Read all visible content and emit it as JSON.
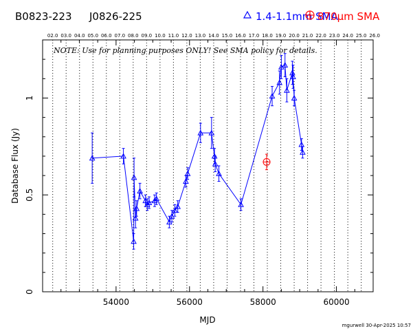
{
  "header": {
    "source_name": "B0823-223",
    "alt_name": "J0826-225",
    "legend_blue": "1.4-1.1mm SMA",
    "legend_red": "870μm SMA"
  },
  "note": "NOTE: Use for planning purposes ONLY! See SMA policy for details.",
  "stamp": "mgurwell 30-Apr-2025 10:57",
  "colors": {
    "blue": "#0000ff",
    "red": "#ff0000",
    "axis": "#000000"
  },
  "chart_data": {
    "type": "scatter",
    "xlabel": "MJD",
    "ylabel": "Database Flux (Jy)",
    "xlim": [
      52000,
      61000
    ],
    "ylim": [
      0,
      1.3
    ],
    "x_ticks": [
      54000,
      56000,
      58000,
      60000
    ],
    "x_tick_labels": [
      "54000",
      "56000",
      "58000",
      "60000"
    ],
    "y_ticks": [
      0,
      0.5,
      1
    ],
    "y_tick_labels": [
      "0",
      "0.5",
      "1"
    ],
    "top_axis_labels": [
      "02.0",
      "03.0",
      "04.0",
      "05.0",
      "06.0",
      "07.0",
      "08.0",
      "09.0",
      "10.0",
      "11.0",
      "12.0",
      "13.0",
      "14.0",
      "15.0",
      "16.0",
      "17.0",
      "18.0",
      "19.0",
      "20.0",
      "21.0",
      "22.0",
      "23.0",
      "24.0",
      "25.0",
      "26.0"
    ],
    "top_axis_first_mjd": 52275,
    "top_axis_step_days": 365.25,
    "grid": "vertical dotted at year boundaries",
    "legend_position": "top",
    "series": [
      {
        "name": "1.4-1.1mm SMA",
        "color": "#0000ff",
        "marker": "triangle",
        "connected": true,
        "points": [
          {
            "x": 53350,
            "y": 0.69,
            "err": 0.13
          },
          {
            "x": 54200,
            "y": 0.7,
            "err": 0.04
          },
          {
            "x": 54480,
            "y": 0.26,
            "err": 0.04
          },
          {
            "x": 54490,
            "y": 0.59,
            "err": 0.1
          },
          {
            "x": 54530,
            "y": 0.38,
            "err": 0.05
          },
          {
            "x": 54560,
            "y": 0.43,
            "err": 0.04
          },
          {
            "x": 54650,
            "y": 0.52,
            "err": 0.04
          },
          {
            "x": 54800,
            "y": 0.47,
            "err": 0.03
          },
          {
            "x": 54850,
            "y": 0.45,
            "err": 0.03
          },
          {
            "x": 54900,
            "y": 0.46,
            "err": 0.03
          },
          {
            "x": 55050,
            "y": 0.47,
            "err": 0.03
          },
          {
            "x": 55100,
            "y": 0.48,
            "err": 0.03
          },
          {
            "x": 55450,
            "y": 0.36,
            "err": 0.03
          },
          {
            "x": 55520,
            "y": 0.39,
            "err": 0.03
          },
          {
            "x": 55600,
            "y": 0.42,
            "err": 0.03
          },
          {
            "x": 55680,
            "y": 0.44,
            "err": 0.03
          },
          {
            "x": 55900,
            "y": 0.57,
            "err": 0.03
          },
          {
            "x": 55950,
            "y": 0.61,
            "err": 0.03
          },
          {
            "x": 56300,
            "y": 0.82,
            "err": 0.05
          },
          {
            "x": 56600,
            "y": 0.82,
            "err": 0.08
          },
          {
            "x": 56680,
            "y": 0.7,
            "err": 0.04
          },
          {
            "x": 56700,
            "y": 0.66,
            "err": 0.04
          },
          {
            "x": 56800,
            "y": 0.61,
            "err": 0.04
          },
          {
            "x": 57400,
            "y": 0.45,
            "err": 0.03
          },
          {
            "x": 58250,
            "y": 1.01,
            "err": 0.05
          },
          {
            "x": 58450,
            "y": 1.08,
            "err": 0.06
          },
          {
            "x": 58500,
            "y": 1.16,
            "err": 0.06
          },
          {
            "x": 58600,
            "y": 1.17,
            "err": 0.06
          },
          {
            "x": 58650,
            "y": 1.04,
            "err": 0.06
          },
          {
            "x": 58800,
            "y": 1.13,
            "err": 0.06
          },
          {
            "x": 58820,
            "y": 1.11,
            "err": 0.06
          },
          {
            "x": 58850,
            "y": 1.0,
            "err": 0.04
          },
          {
            "x": 59050,
            "y": 0.76,
            "err": 0.03
          },
          {
            "x": 59080,
            "y": 0.72,
            "err": 0.03
          }
        ]
      },
      {
        "name": "870μm SMA",
        "color": "#ff0000",
        "marker": "circle-plus",
        "connected": false,
        "points": [
          {
            "x": 58100,
            "y": 0.67,
            "err": 0.04
          }
        ]
      }
    ]
  }
}
